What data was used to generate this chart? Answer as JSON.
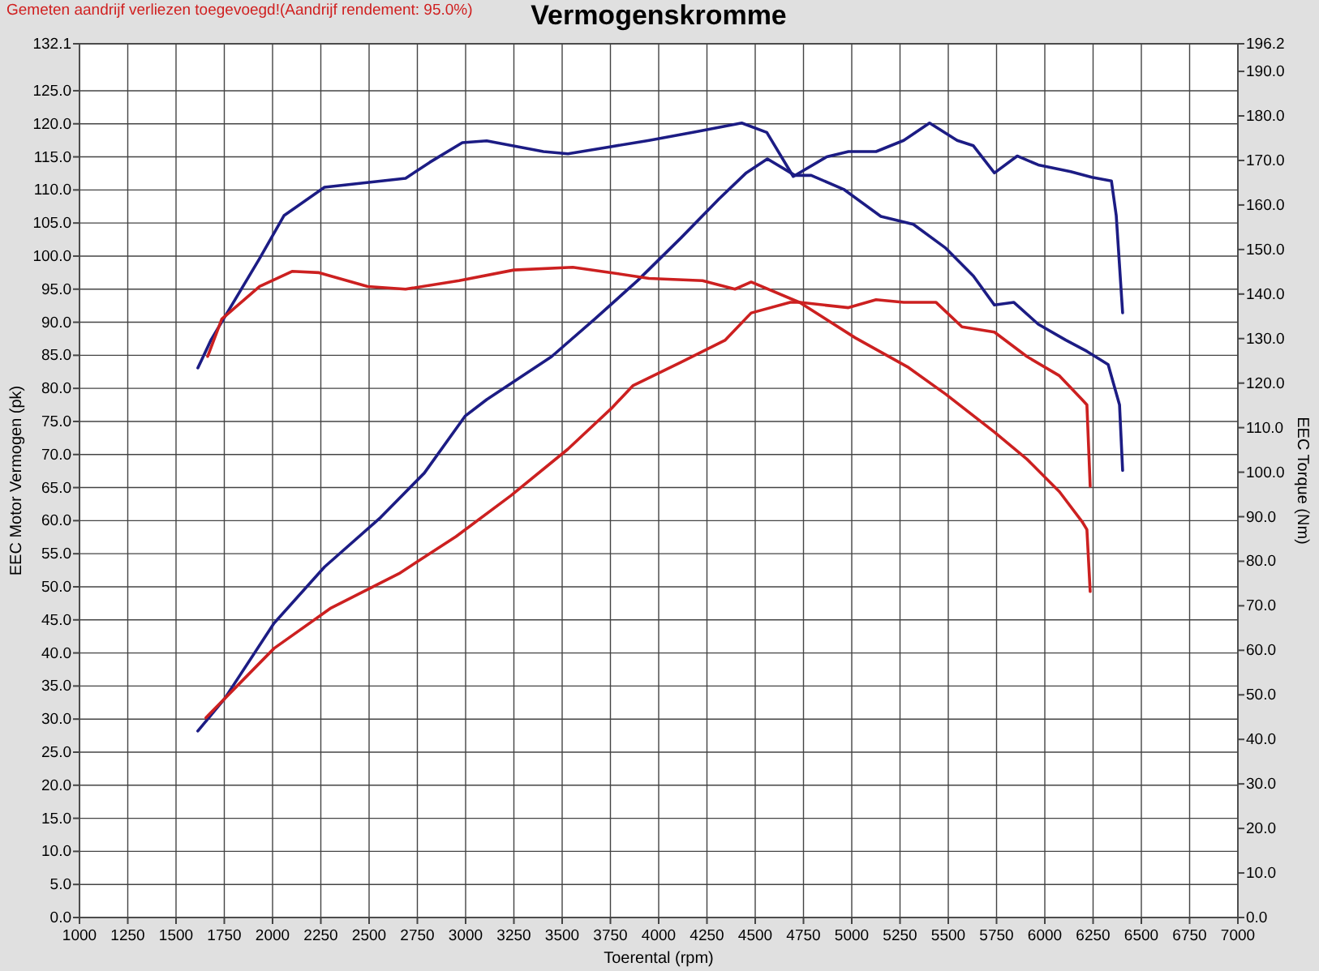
{
  "chart_data": {
    "type": "line",
    "title": "Vermogenskromme",
    "xlabel": "Toerental (rpm)",
    "ylabel": "EEC Motor Vermogen (pk)",
    "y2label": "EEC Torque (Nm)",
    "annotations": [
      "Gemeten aandrijf verliezen toegevoegd!(Aandrijf rendement: 95.0%)"
    ],
    "xlim": [
      1000,
      7000
    ],
    "xticks": [
      1000,
      1250,
      1500,
      1750,
      2000,
      2250,
      2500,
      2750,
      3000,
      3250,
      3500,
      3750,
      4000,
      4250,
      4500,
      4750,
      5000,
      5250,
      5500,
      5750,
      6000,
      6250,
      6500,
      6750,
      7000
    ],
    "ylim": [
      0,
      132.1
    ],
    "yticks": [
      {
        "value": 0,
        "label": "0.0"
      },
      {
        "value": 5,
        "label": "5.0"
      },
      {
        "value": 10,
        "label": "10.0"
      },
      {
        "value": 15,
        "label": "15.0"
      },
      {
        "value": 20,
        "label": "20.0"
      },
      {
        "value": 25,
        "label": "25.0"
      },
      {
        "value": 30,
        "label": "30.0"
      },
      {
        "value": 35,
        "label": "35.0"
      },
      {
        "value": 40,
        "label": "40.0"
      },
      {
        "value": 45,
        "label": "45.0"
      },
      {
        "value": 50,
        "label": "50.0"
      },
      {
        "value": 55,
        "label": "55.0"
      },
      {
        "value": 60,
        "label": "60.0"
      },
      {
        "value": 65,
        "label": "65.0"
      },
      {
        "value": 70,
        "label": "70.0"
      },
      {
        "value": 75,
        "label": "75.0"
      },
      {
        "value": 80,
        "label": "80.0"
      },
      {
        "value": 85,
        "label": "85.0"
      },
      {
        "value": 90,
        "label": "90.0"
      },
      {
        "value": 95,
        "label": "95.0"
      },
      {
        "value": 100,
        "label": "100.0"
      },
      {
        "value": 105,
        "label": "105.0"
      },
      {
        "value": 110,
        "label": "110.0"
      },
      {
        "value": 115,
        "label": "115.0"
      },
      {
        "value": 120,
        "label": "120.0"
      },
      {
        "value": 125,
        "label": "125.0"
      },
      132.1
    ],
    "y2lim": [
      0,
      196.2
    ],
    "y2ticks": [
      {
        "value": 0,
        "label": "0.0"
      },
      {
        "value": 10,
        "label": "10.0"
      },
      {
        "value": 20,
        "label": "20.0"
      },
      {
        "value": 30,
        "label": "30.0"
      },
      {
        "value": 40,
        "label": "40.0"
      },
      {
        "value": 50,
        "label": "50.0"
      },
      {
        "value": 60,
        "label": "60.0"
      },
      {
        "value": 70,
        "label": "70.0"
      },
      {
        "value": 80,
        "label": "80.0"
      },
      {
        "value": 90,
        "label": "90.0"
      },
      {
        "value": 100,
        "label": "100.0"
      },
      {
        "value": 110,
        "label": "110.0"
      },
      {
        "value": 120,
        "label": "120.0"
      },
      {
        "value": 130,
        "label": "130.0"
      },
      {
        "value": 140,
        "label": "140.0"
      },
      {
        "value": 150,
        "label": "150.0"
      },
      {
        "value": 160,
        "label": "160.0"
      },
      {
        "value": 170,
        "label": "170.0"
      },
      {
        "value": 180,
        "label": "180.0"
      },
      {
        "value": 190,
        "label": "190.0"
      },
      196.2
    ],
    "grid": true,
    "series": [
      {
        "color": "#1c1c84",
        "axis": "y2",
        "x": [
          1613,
          1680,
          1933,
          2059,
          2269,
          2479,
          2689,
          2815,
          2983,
          3109,
          3403,
          3530,
          3740,
          3950,
          4200,
          4430,
          4560,
          4697,
          4870,
          4983,
          5126,
          5269,
          5403,
          5546,
          5630,
          5739,
          5857,
          5966,
          6134,
          6244,
          6345,
          6370,
          6403
        ],
        "values": [
          123.4,
          129.6,
          148,
          157.6,
          164,
          165,
          166,
          169.6,
          174,
          174.4,
          172,
          171.5,
          173,
          174.5,
          176.5,
          178.4,
          176.3,
          166.4,
          170.8,
          172,
          172,
          174.5,
          178.4,
          174.5,
          173.3,
          167.2,
          171,
          169,
          167.5,
          166.2,
          165.4,
          157.6,
          135.8
        ]
      },
      {
        "color": "#1c1c84",
        "x": [
          1613,
          1752,
          2008,
          2269,
          2560,
          2786,
          2997,
          3109,
          3445,
          3670,
          3891,
          4117,
          4311,
          4454,
          4563,
          4706,
          4790,
          4958,
          5151,
          5319,
          5487,
          5630,
          5739,
          5840,
          5966,
          6109,
          6218,
          6328,
          6387,
          6403
        ],
        "values": [
          28.2,
          33.1,
          44.5,
          53,
          60.5,
          67.2,
          75.8,
          78.3,
          84.8,
          90.5,
          96.3,
          102.8,
          108.6,
          112.6,
          114.7,
          112.2,
          112.2,
          110.1,
          106,
          104.8,
          101.2,
          97,
          92.6,
          93,
          89.7,
          87.3,
          85.6,
          83.6,
          77.5,
          67.6
        ]
      },
      {
        "color": "#cc2020",
        "axis": "y2",
        "x": [
          1664,
          1737,
          1933,
          2101,
          2241,
          2493,
          2689,
          2966,
          3250,
          3555,
          3754,
          3950,
          4227,
          4395,
          4479,
          4731,
          5017,
          5294,
          5487,
          5739,
          5908,
          6076,
          6193,
          6218,
          6235
        ],
        "values": [
          126,
          134.4,
          141.7,
          145.1,
          144.8,
          141.7,
          141.1,
          143,
          145.4,
          146,
          144.8,
          143.5,
          143,
          141.1,
          142.7,
          138.1,
          130.2,
          123.5,
          117.5,
          109,
          102.9,
          95.6,
          88.9,
          87.1,
          73.2
        ]
      },
      {
        "color": "#cc2020",
        "x": [
          1655,
          2008,
          2303,
          2655,
          2950,
          3235,
          3529,
          3756,
          3866,
          4118,
          4345,
          4479,
          4681,
          4731,
          4983,
          5126,
          5269,
          5437,
          5571,
          5739,
          5908,
          6076,
          6193,
          6218,
          6235
        ],
        "values": [
          30.2,
          40.7,
          46.8,
          52,
          57.6,
          63.8,
          70.8,
          77,
          80.4,
          84,
          87.3,
          91.4,
          93,
          93,
          92.2,
          93.4,
          93,
          93,
          89.3,
          88.5,
          84.8,
          81.9,
          78.3,
          77.5,
          65.2
        ]
      }
    ]
  }
}
